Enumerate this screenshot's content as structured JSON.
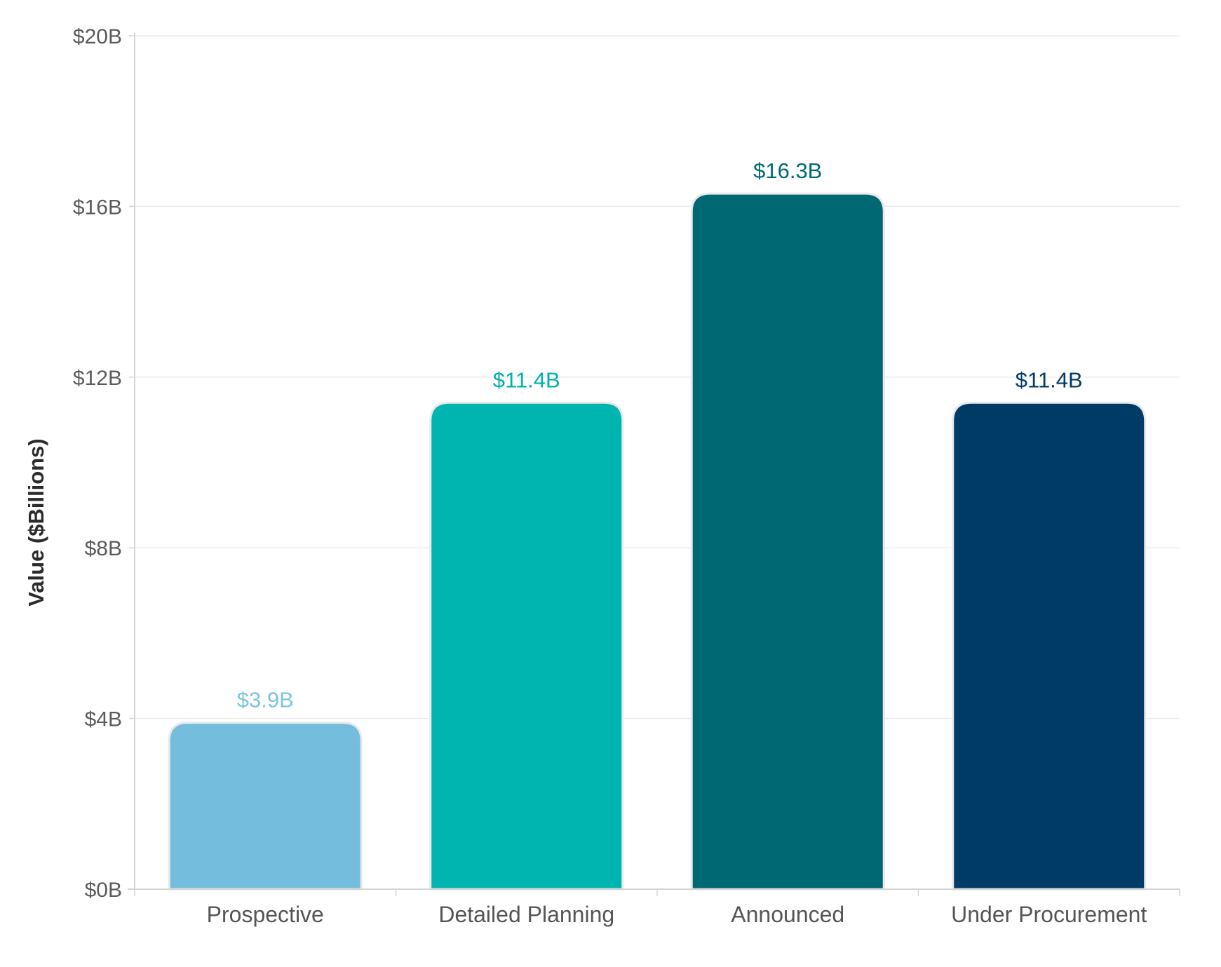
{
  "chart_data": {
    "type": "bar",
    "categories": [
      "Prospective",
      "Detailed Planning",
      "Announced",
      "Under Procurement"
    ],
    "values": [
      3.9,
      11.4,
      16.3,
      11.4
    ],
    "data_labels": [
      "$3.9B",
      "$11.4B",
      "$16.3B",
      "$11.4B"
    ],
    "colors": [
      "#75bddd",
      "#00b5b0",
      "#006872",
      "#003b66"
    ],
    "label_colors": [
      "#7cc4e0",
      "#00b0ab",
      "#006a73",
      "#003b66"
    ],
    "title": "",
    "xlabel": "",
    "ylabel": "Value ($Billions)",
    "ylim": [
      0,
      20
    ],
    "y_ticks": [
      0,
      4,
      8,
      12,
      16,
      20
    ],
    "y_tick_labels": [
      "$0B",
      "$4B",
      "$8B",
      "$12B",
      "$16B",
      "$20B"
    ],
    "grid": true,
    "legend": "none"
  }
}
